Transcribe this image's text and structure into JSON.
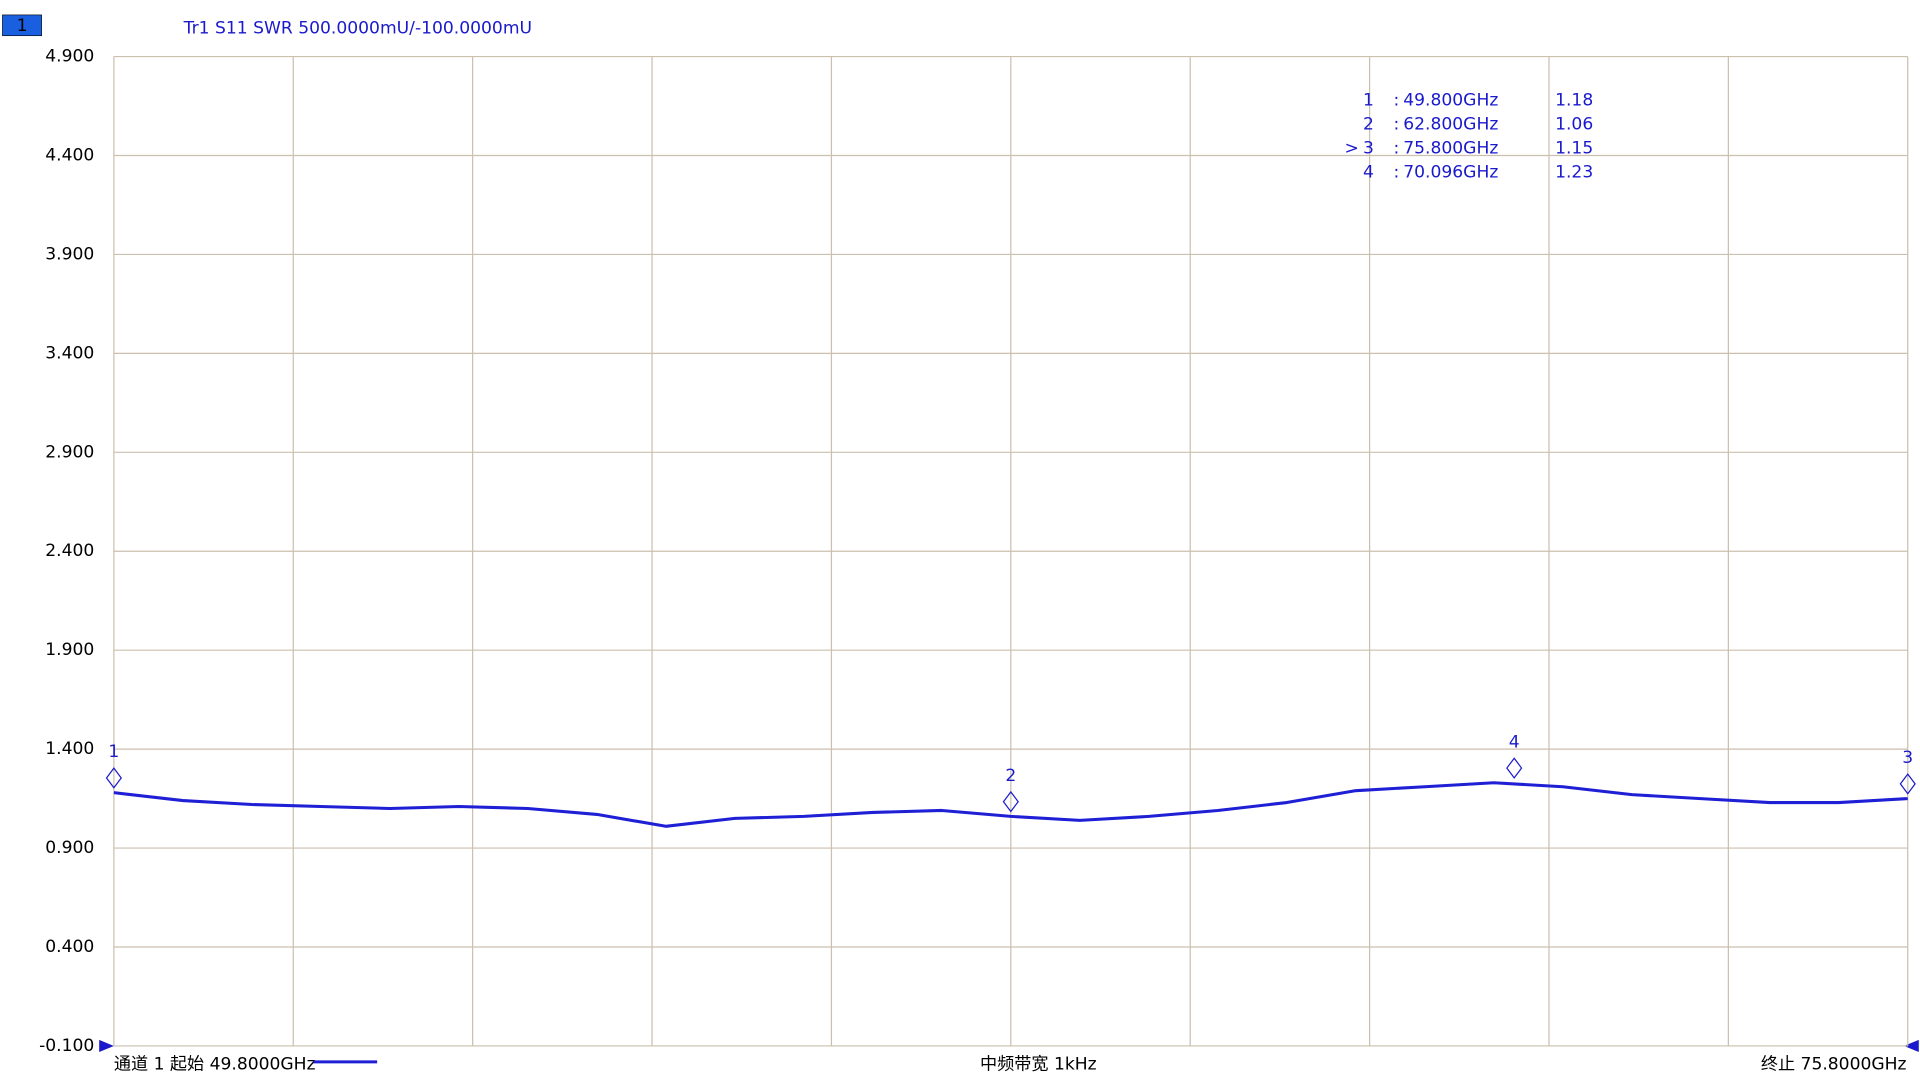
{
  "chart_data": {
    "type": "line",
    "channel_badge": "1",
    "title": "Tr1 S11 SWR 500.0000mU/-100.0000mU",
    "start_label": "通道 1 起始 49.8000GHz",
    "center_label": "中频带宽 1kHz",
    "stop_label": "终止 75.8000GHz",
    "xlim": [
      49.8,
      75.8
    ],
    "xgrid_divisions": 10,
    "ylim": [
      -0.1,
      4.9
    ],
    "yticks": [
      {
        "value": -0.1,
        "label": "-0.100"
      },
      {
        "value": 0.4,
        "label": "0.400"
      },
      {
        "value": 0.9,
        "label": "0.900"
      },
      {
        "value": 1.4,
        "label": "1.400"
      },
      {
        "value": 1.9,
        "label": "1.900"
      },
      {
        "value": 2.4,
        "label": "2.400"
      },
      {
        "value": 2.9,
        "label": "2.900"
      },
      {
        "value": 3.4,
        "label": "3.400"
      },
      {
        "value": 3.9,
        "label": "3.900"
      },
      {
        "value": 4.4,
        "label": "4.400"
      },
      {
        "value": 4.9,
        "label": "4.900"
      }
    ],
    "grid": true,
    "x": [
      49.8,
      50.8,
      51.8,
      52.8,
      53.8,
      54.8,
      55.8,
      56.8,
      57.8,
      58.8,
      59.8,
      60.8,
      61.8,
      62.8,
      63.8,
      64.8,
      65.8,
      66.8,
      67.8,
      68.8,
      69.8,
      70.8,
      71.8,
      72.8,
      73.8,
      74.8,
      75.8
    ],
    "series": [
      {
        "name": "Tr1",
        "color": "#1f1fd6",
        "values": [
          1.18,
          1.14,
          1.12,
          1.11,
          1.1,
          1.11,
          1.1,
          1.07,
          1.01,
          1.05,
          1.06,
          1.08,
          1.09,
          1.06,
          1.04,
          1.06,
          1.09,
          1.13,
          1.19,
          1.21,
          1.23,
          1.21,
          1.17,
          1.15,
          1.13,
          1.13,
          1.15
        ]
      }
    ],
    "markers": {
      "names": [
        "1",
        "2",
        "3",
        "4"
      ],
      "x": [
        49.8,
        62.8,
        75.8,
        70.096
      ],
      "x_labels": [
        "49.800GHz",
        "62.800GHz",
        "75.800GHz",
        "70.096GHz"
      ],
      "values": [
        1.18,
        1.06,
        1.15,
        1.23
      ],
      "separator": ":",
      "active": 2,
      "active_indicator": ">"
    }
  }
}
